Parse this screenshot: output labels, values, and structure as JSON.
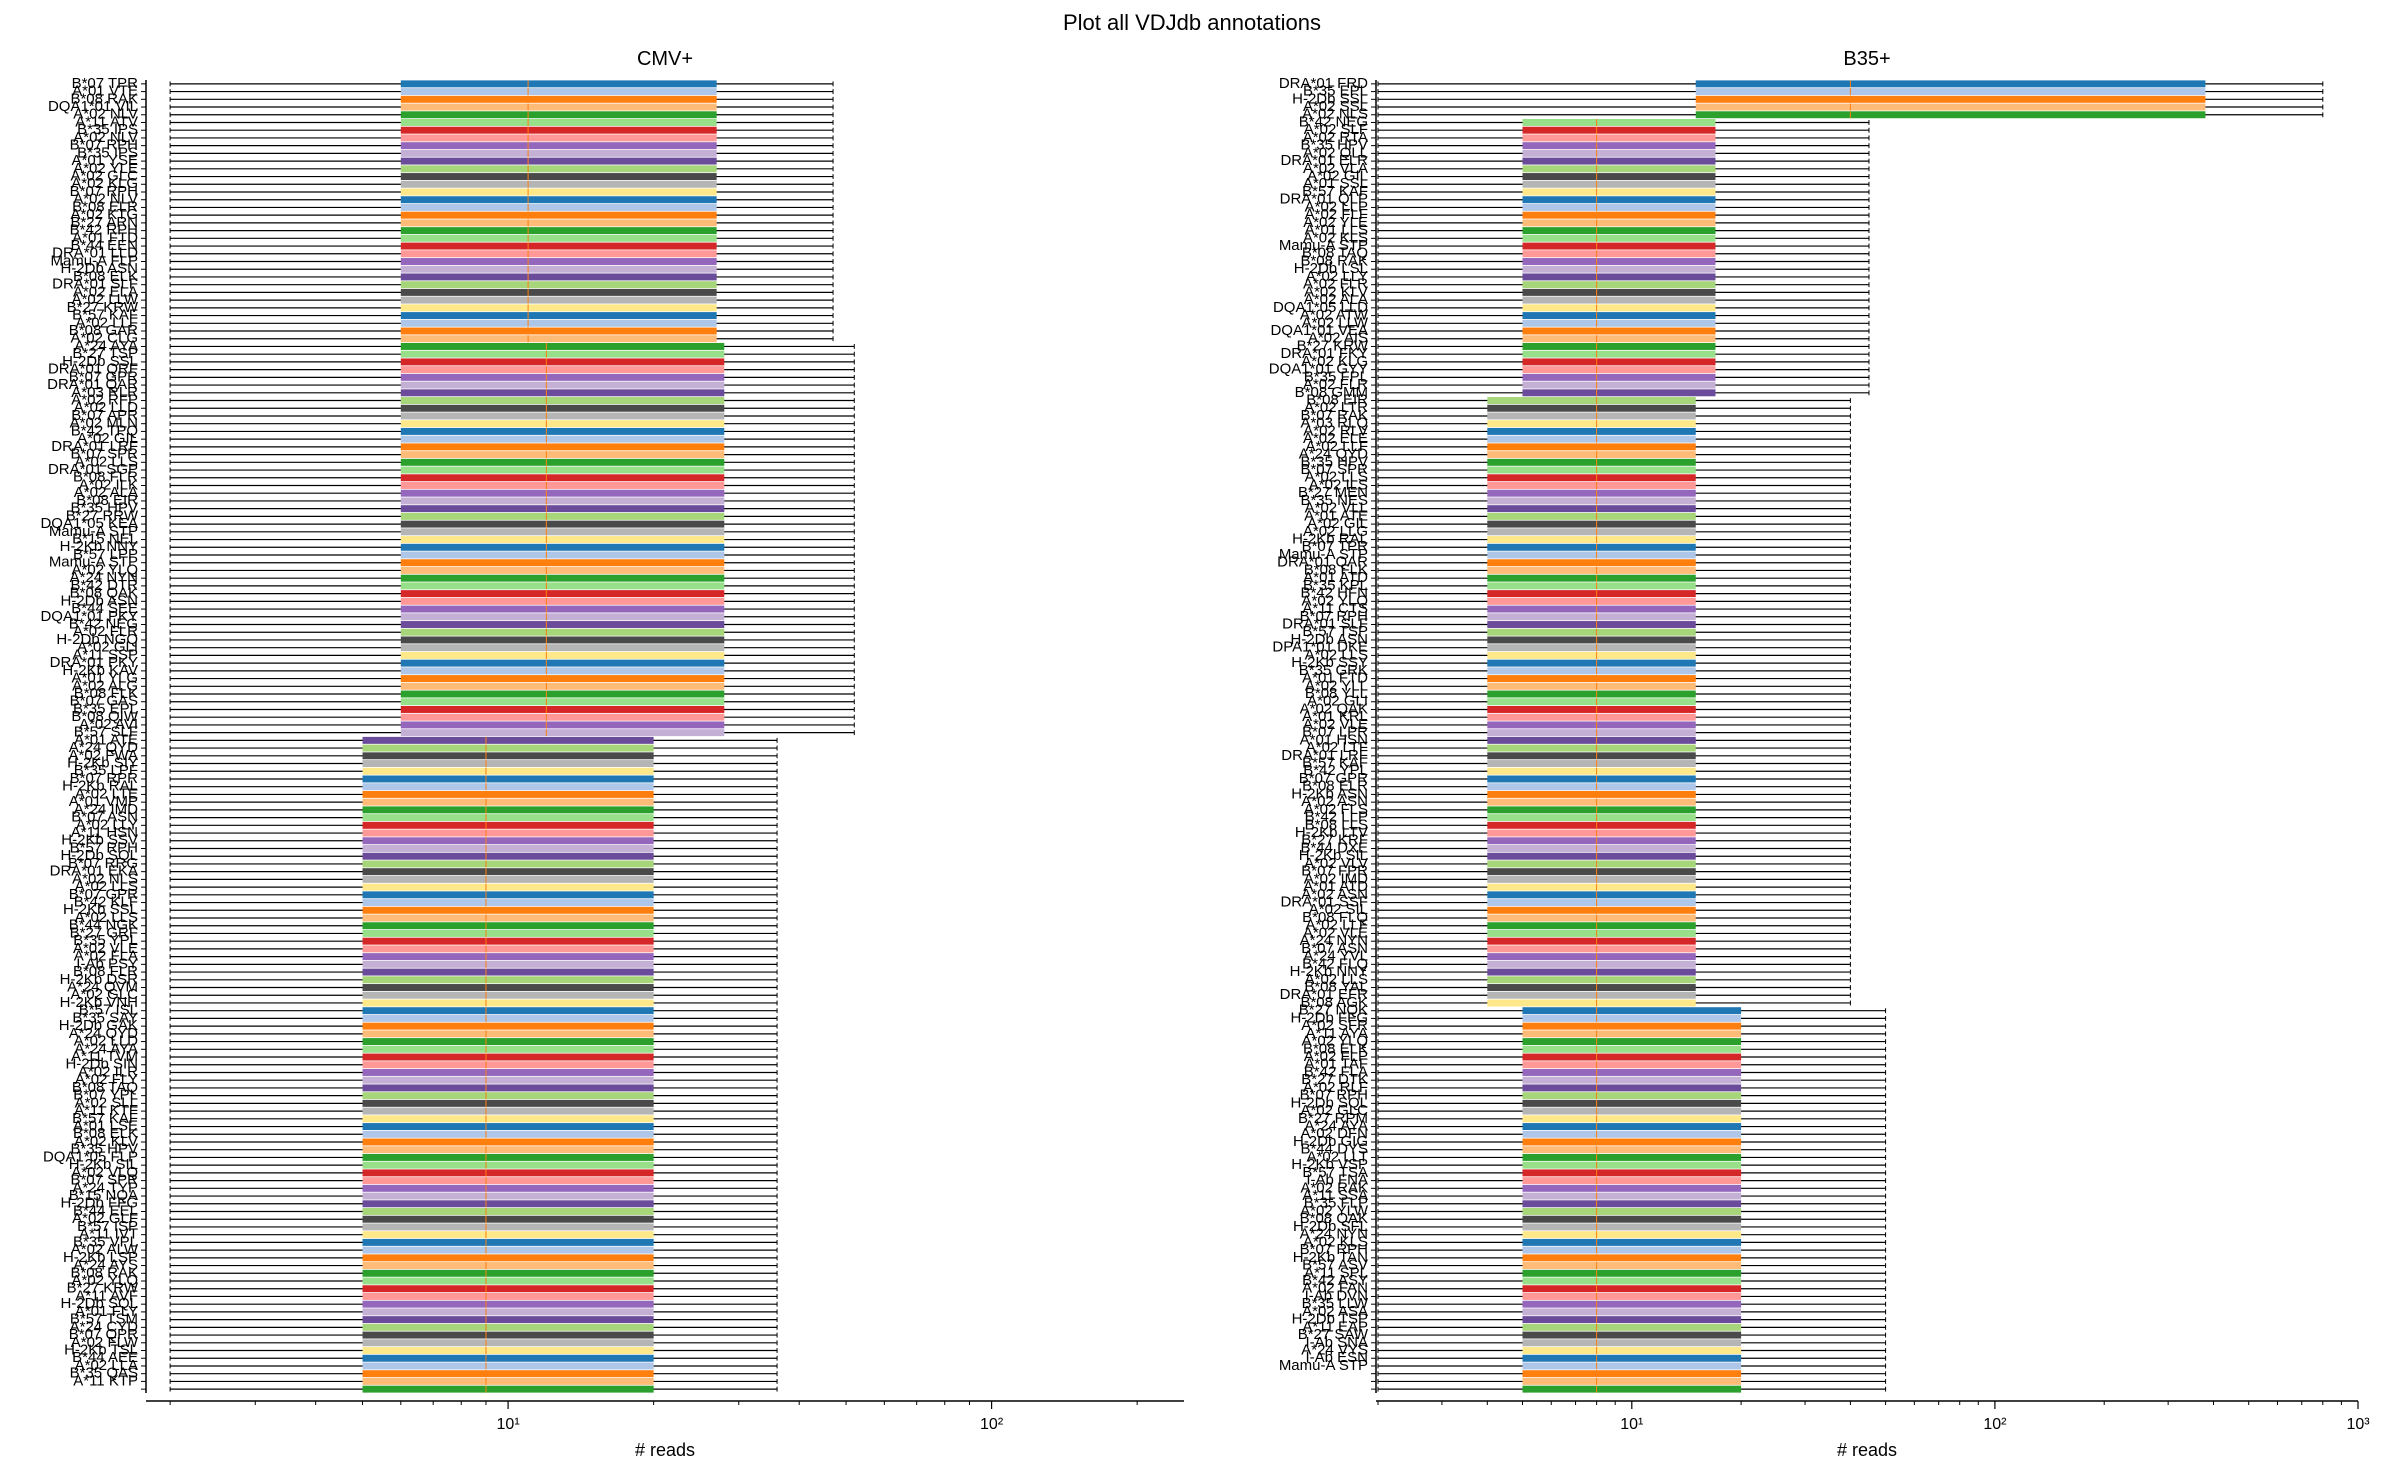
{
  "figure": {
    "title": "Plot all VDJdb annotations"
  },
  "colors": {
    "palette": [
      "#1f77b4",
      "#aec7e8",
      "#ff7f0e",
      "#ffbb78",
      "#2ca02c",
      "#98df8a",
      "#d62728",
      "#ff9896",
      "#9467bd",
      "#c5b0d5",
      "#6b4c9a",
      "#a6d57a",
      "#4a4a4a",
      "#b5b5b5",
      "#ffe88a"
    ],
    "whisker": "#000000",
    "median": "#ff7f0e"
  },
  "chart_data": [
    {
      "type": "box",
      "orientation": "horizontal",
      "title": "CMV+",
      "xlabel": "# reads",
      "ylabel": "",
      "xscale": "log",
      "xlim": [
        1.8,
        250
      ],
      "xticks": [
        10,
        100
      ],
      "xtick_labels": [
        "10¹",
        "10²"
      ],
      "grid": false,
      "legend": "none",
      "n_categories": 170,
      "categories": [
        "B*07 TPR",
        "A*01 VTE",
        "B*08 RAK",
        "DQA1*01 VIL",
        "A*02 NLV",
        "A*11 ATV",
        "B*35 IPS",
        "A*02 NLV",
        "B*07 RPH",
        "B*35 IPS",
        "A*01 YSE",
        "A*02 YLE",
        "A*02 GLC",
        "A*02 KLG",
        "B*07 RPH",
        "A*02 NLV",
        "B*08 ELR",
        "A*02 KTG",
        "B*27 ARN",
        "B*42 RPH",
        "A*01 FTD",
        "B*44 EEN",
        "DRA*01 LLD",
        "Mamu-A FLP",
        "H-2Db ASN",
        "B*08 ELK",
        "DRA*01 SLF",
        "A*02 ELA",
        "A*02 LLW",
        "B*27 KRW",
        "B*57 KAF",
        "A*02 LLF",
        "B*08 GAR",
        "A*02 CLG",
        "A*24 AYA",
        "B*27 TSP",
        "H-2Db SSL",
        "DRA*01 QRF",
        "B*07 GPR",
        "DRA*01 QAR",
        "A*03 RLR",
        "A*02 RFP",
        "A*02 LLD",
        "B*07 APR",
        "A*02 MLN",
        "B*42 TPQ",
        "A*02 GIL",
        "DRA*01 LRF",
        "B*07 SPR",
        "A*02 LLS",
        "DRA*01 SGP",
        "B*08 FLR",
        "A*02 ILK",
        "A*02 ALA",
        "B*08 EIR",
        "B*35 HPV",
        "B*27 RRW",
        "DQA1*05 KEA",
        "Mamu-A STP",
        "B*15 NEL",
        "H-2Kb NNY",
        "B*57 LPP",
        "Mamu-A STP",
        "A*02 YLQ",
        "A*24 NYN",
        "B*42 DTR",
        "B*08 QAK",
        "H-2Db ASN",
        "B*44 SEE",
        "DQA1*01 PKY",
        "B*42 NEG",
        "A*02 FLR",
        "H-2Db NGQ",
        "A*02 GLI",
        "A*11 SSP",
        "DRA*01 PKY",
        "H-2Kb KAV",
        "A*01 YLG",
        "A*02 ALG",
        "B*08 FLK",
        "B*07 GAS",
        "B*35 EPL",
        "B*08 QIW",
        "A*02 AVI",
        "B*57 SLF",
        "A*01 ATE",
        "A*24 QYD",
        "A*02 FWA",
        "H-2Kb SIY",
        "B*35 LPF",
        "B*07 RPR",
        "H-2Kb RAL",
        "A*02 LTE",
        "A*01 VMP",
        "A*24 IMD",
        "B*07 ASN",
        "A*02 LLY",
        "A*11 HSN",
        "H-2Kb SSV",
        "B*57 RPH",
        "H-2Db SQL",
        "B*07 RRG",
        "DRA*01 EKA",
        "A*02 NLS",
        "A*02 LLS",
        "B*07 GPR",
        "B*42 KLF",
        "H-2Kb SSL",
        "A*02 LLS",
        "B*44 NGK",
        "B*27 GRF",
        "B*35 YPL",
        "A*02 VLE",
        "A*02 FLA",
        "I-Ab PSY",
        "B*08 FLR",
        "H-2Kb DSR",
        "A*24 QVM",
        "A*02 GLC",
        "H-2Kb VNH",
        "B*57 ISL",
        "B*35 SAY",
        "H-2Db GAK",
        "A*24 QYD",
        "A*02 LLD",
        "A*24 AYA",
        "A*11 TVM",
        "H-2Db SIN",
        "A*02 ILR",
        "A*02 FLY",
        "B*08 TAQ",
        "B*07 YPL",
        "A*02 SLL",
        "A*11 KTF",
        "B*57 KAF",
        "A*01 LSE",
        "B*08 ELK",
        "A*02 KLV",
        "B*35 HPV",
        "DQA1*05 FLP",
        "H-2Kb SIL",
        "A*02 VLQ",
        "B*07 SPR",
        "A*24 TYP",
        "B*15 NQA",
        "H-2Db FFG",
        "B*44 EEL",
        "A*02 GLF",
        "B*57 ISP",
        "A*11 IVT",
        "B*35 VPL",
        "A*02 ALW",
        "H-2Kb LSP",
        "A*24 AYS",
        "B*08 RAK",
        "A*02 YLQ",
        "B*27 KRW",
        "A*11 AVF",
        "H-2Db SQL",
        "A*01 FLY",
        "B*57 TSM",
        "A*24 CYD",
        "B*07 QPR",
        "A*02 FLW",
        "H-2Kb TSL",
        "B*44 AEE",
        "A*02 LLA",
        "B*35 QAS",
        "A*11 KTP"
      ],
      "row_groups": [
        {
          "rows": "0-33",
          "whisker_low": 2,
          "q1": 6,
          "median": 11,
          "q3": 27,
          "whisker_high": 47
        },
        {
          "rows": "34-84",
          "whisker_low": 2,
          "q1": 6,
          "median": 12,
          "q3": 28,
          "whisker_high": 52
        },
        {
          "rows": "85-169",
          "whisker_low": 2,
          "q1": 5,
          "median": 9,
          "q3": 20,
          "whisker_high": 36
        }
      ]
    },
    {
      "type": "box",
      "orientation": "horizontal",
      "title": "B35+",
      "xlabel": "# reads",
      "ylabel": "",
      "xscale": "log",
      "xlim": [
        2,
        1000
      ],
      "xticks": [
        10,
        100,
        1000
      ],
      "xtick_labels": [
        "10¹",
        "10²",
        "10³"
      ],
      "grid": false,
      "legend": "none",
      "n_categories": 170,
      "categories": [
        "DRA*01 FRD",
        "B*35 EPL",
        "H-2Db SSL",
        "A*02 SSL",
        "A*02 NLS",
        "B*42 NEG",
        "A*02 SLF",
        "A*02 RTA",
        "B*35 HPV",
        "A*02 QLL",
        "DRA*01 ELR",
        "A*02 VLA",
        "A*02 GIL",
        "A*01 SSL",
        "B*57 KAF",
        "DRA*01 QLP",
        "A*02 LLP",
        "A*02 FLF",
        "A*02 YLE",
        "A*01 LLS",
        "A*02 KLS",
        "Mamu-A STP",
        "B*08 TAQ",
        "B*08 RAK",
        "H-2Db LSL",
        "A*02 LLY",
        "A*02 FLR",
        "A*02 KLV",
        "A*02 ALA",
        "DQA1*05 LLD",
        "A*02 ATW",
        "A*02 LLW",
        "DQA1*01 VEA",
        "A*02 AIS",
        "B*27 KRW",
        "DRA*01 FKY",
        "A*02 KLG",
        "DQA1*01 GYY",
        "B*35 FPL",
        "A*02 FLR",
        "B*08 GMM",
        "B*08 EIR",
        "A*02 LTR",
        "B*07 RAK",
        "A*03 RLQ",
        "A*02 RLV",
        "A*02 ELE",
        "A*02 LLF",
        "A*24 QYD",
        "B*35 HPV",
        "B*07 SPR",
        "A*02 LLS",
        "A*02 ILS",
        "B*27 MEN",
        "B*35 NES",
        "A*02 VLL",
        "A*01 ATE",
        "A*02 GIL",
        "A*02 LLG",
        "H-2Kb RAL",
        "B*07 TPR",
        "Mamu-A STP",
        "DRA*01 QAR",
        "B*08 FLK",
        "A*01 ATD",
        "B*35 KPL",
        "B*42 HFN",
        "A*02 YLQ",
        "A*11 CTS",
        "B*07 RPH",
        "DRA*01 SLF",
        "B*57 TSP",
        "H-2Db ASN",
        "DPA1*01 DKE",
        "A*02 LLS",
        "H-2Kb SSY",
        "B*35 GRK",
        "A*01 FTD",
        "A*02 YLL",
        "B*08 YLL",
        "A*02 GLI",
        "A*02 QAK",
        "A*01 KRL",
        "A*02 VLE",
        "B*07 LPR",
        "A*01 HSN",
        "A*02 LTF",
        "DRA*01 LRF",
        "B*57 KAF",
        "B*42 YPL",
        "B*07 GPR",
        "B*08 ELR",
        "H-2Kb ASN",
        "A*02 ASN",
        "A*02 FLS",
        "B*42 LLP",
        "B*08 LLS",
        "H-2Kb LTV",
        "B*27 KRF",
        "B*44 DXE",
        "H-2Kb SIL",
        "A*02 VLV",
        "B*07 FPR",
        "A*02 IMD",
        "A*01 ATD",
        "A*02 ASN",
        "DRA*01 SSF",
        "A*02 SIL",
        "B*08 FLQ",
        "A*02 LLF",
        "A*02 VLE",
        "A*24 NYN",
        "B*07 ASN",
        "A*24 YVL",
        "B*42 FLQ",
        "H-2Kb NNY",
        "A*02 LLS",
        "B*08 YAL",
        "DRA*01 EFR",
        "B*08 AGK",
        "B*27 NQK",
        "H-2Db FFG",
        "A*02 SFR",
        "A*11 AYA",
        "A*02 YLQ",
        "B*08 ELK",
        "A*02 FLP",
        "A*01 TAF",
        "B*42 FLA",
        "B*27 DTK",
        "A*02 RLF",
        "B*07 RPH",
        "H-2Db SQL",
        "A*02 GLC",
        "B*27 RPM",
        "A*24 AYA",
        "A*02 DFN",
        "H-2Db GIG",
        "B*44 DYS",
        "A*02 LLT",
        "H-2Kb VSP",
        "B*57 TSA",
        "I-Ab FNA",
        "A*02 RAK",
        "A*11 SSA",
        "B*35 FLP",
        "A*02 YLW",
        "B*08 QAK",
        "H-2Db SFL",
        "A*24 NYN",
        "A*02 KLS",
        "B*07 RPH",
        "H-2Kb TAN",
        "B*57 ASV",
        "A*11 SPL",
        "B*42 ASY",
        "A*02 FAN",
        "I-Ab DVN",
        "B*35 LLW",
        "A*02 ASA",
        "H-2Db TSP",
        "A*11 EAP",
        "B*27 SAW",
        "I-Ab SNA",
        "A*24 VYS",
        "I-Ab ESN",
        "Mamu-A STP"
      ],
      "row_groups": [
        {
          "rows": "0-4",
          "whisker_low": 2,
          "q1": 15,
          "median": 40,
          "q3": 380,
          "whisker_high": 800
        },
        {
          "rows": "5-40",
          "whisker_low": 2,
          "q1": 5,
          "median": 8,
          "q3": 17,
          "whisker_high": 45
        },
        {
          "rows": "41-119",
          "whisker_low": 2,
          "q1": 4,
          "median": 8,
          "q3": 15,
          "whisker_high": 40
        },
        {
          "rows": "120-169",
          "whisker_low": 2,
          "q1": 5,
          "median": 8,
          "q3": 20,
          "whisker_high": 50
        }
      ]
    }
  ]
}
